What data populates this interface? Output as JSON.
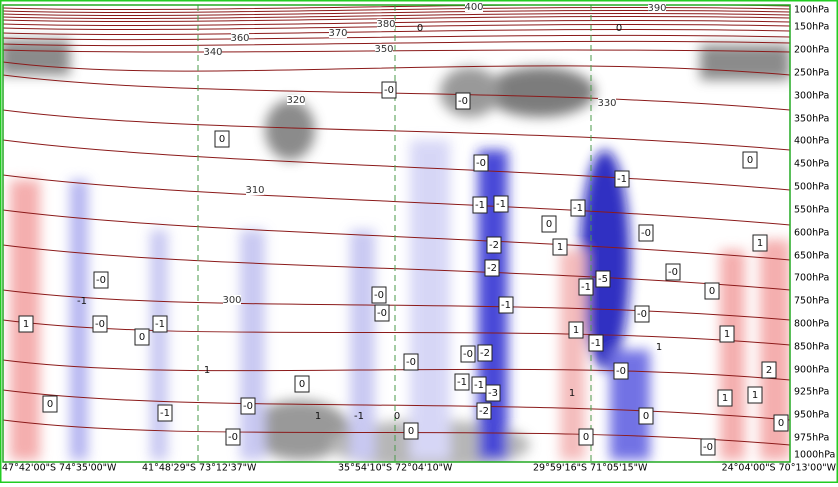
{
  "plot": {
    "y_labels": [
      "100hPa",
      "150hPa",
      "200hPa",
      "250hPa",
      "300hPa",
      "350hPa",
      "400hPa",
      "450hPa",
      "500hPa",
      "550hPa",
      "600hPa",
      "650hPa",
      "700hPa",
      "750hPa",
      "800hPa",
      "850hPa",
      "900hPa",
      "925hPa",
      "950hPa",
      "975hPa",
      "1000hPa"
    ],
    "x_labels": [
      "47°42'00\"S 74°35'00\"W",
      "41°48'29\"S 73°12'37\"W",
      "35°54'10\"S 72°04'10\"W",
      "29°59'16\"S 71°05'15\"W",
      "24°04'00\"S 70°13'00\"W"
    ],
    "theta_labels": [
      "400",
      "390",
      "380",
      "370",
      "360",
      "350",
      "340",
      "330",
      "320",
      "310",
      "300"
    ],
    "contour_labels": [
      "-0",
      "-0",
      "0",
      "-0",
      "0",
      "-1",
      "-1",
      "-1",
      "-1",
      "0",
      "-0",
      "1",
      "1",
      "-2",
      "-2",
      "-0",
      "-0",
      "-5",
      "-1",
      "0",
      "-0",
      "-1",
      "-0",
      "-0",
      "1",
      "-0",
      "-1",
      "0",
      "1",
      "1",
      "-1",
      "-0",
      "-2",
      "-0",
      "1",
      "-0",
      "2",
      "-1",
      "-1",
      "-3",
      "0",
      "1",
      "1",
      "0",
      "-0",
      "1",
      "1",
      "-1",
      "-2",
      "0",
      "0",
      "-0",
      "0",
      "0",
      "-0",
      "1",
      "-1",
      "0",
      "0",
      "0",
      "-1"
    ]
  }
}
